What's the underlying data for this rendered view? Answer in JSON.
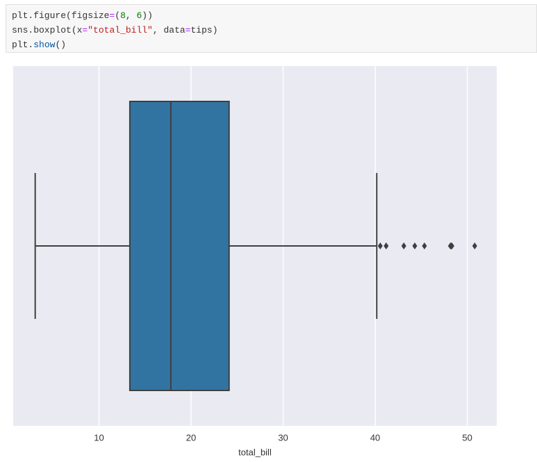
{
  "code": {
    "lines": [
      [
        {
          "text": "plt.figure(figsize",
          "color": "#333333"
        },
        {
          "text": "=",
          "color": "#aa22ff"
        },
        {
          "text": "(",
          "color": "#333333"
        },
        {
          "text": "8",
          "color": "#008000"
        },
        {
          "text": ", ",
          "color": "#333333"
        },
        {
          "text": "6",
          "color": "#008000"
        },
        {
          "text": "))",
          "color": "#333333"
        }
      ],
      [
        {
          "text": "sns.boxplot(x",
          "color": "#333333"
        },
        {
          "text": "=",
          "color": "#aa22ff"
        },
        {
          "text": "\"total_bill\"",
          "color": "#ba2121"
        },
        {
          "text": ", data",
          "color": "#333333"
        },
        {
          "text": "=",
          "color": "#aa22ff"
        },
        {
          "text": "tips)",
          "color": "#333333"
        }
      ],
      [
        {
          "text": "plt.",
          "color": "#333333"
        },
        {
          "text": "show",
          "color": "#0055aa"
        },
        {
          "text": "()",
          "color": "#333333"
        }
      ]
    ]
  },
  "chart_data": {
    "type": "box",
    "xlabel": "total_bill",
    "color": "#3274a1",
    "whisker_low": 3.07,
    "q1": 13.35,
    "median": 17.8,
    "q3": 24.13,
    "whisker_high": 40.17,
    "outliers": [
      40.55,
      41.19,
      43.11,
      44.3,
      45.35,
      48.17,
      48.27,
      48.33,
      50.81
    ],
    "xlim": [
      0.68,
      53.2
    ],
    "xticks": [
      10,
      20,
      30,
      40,
      50
    ],
    "grid": true
  }
}
